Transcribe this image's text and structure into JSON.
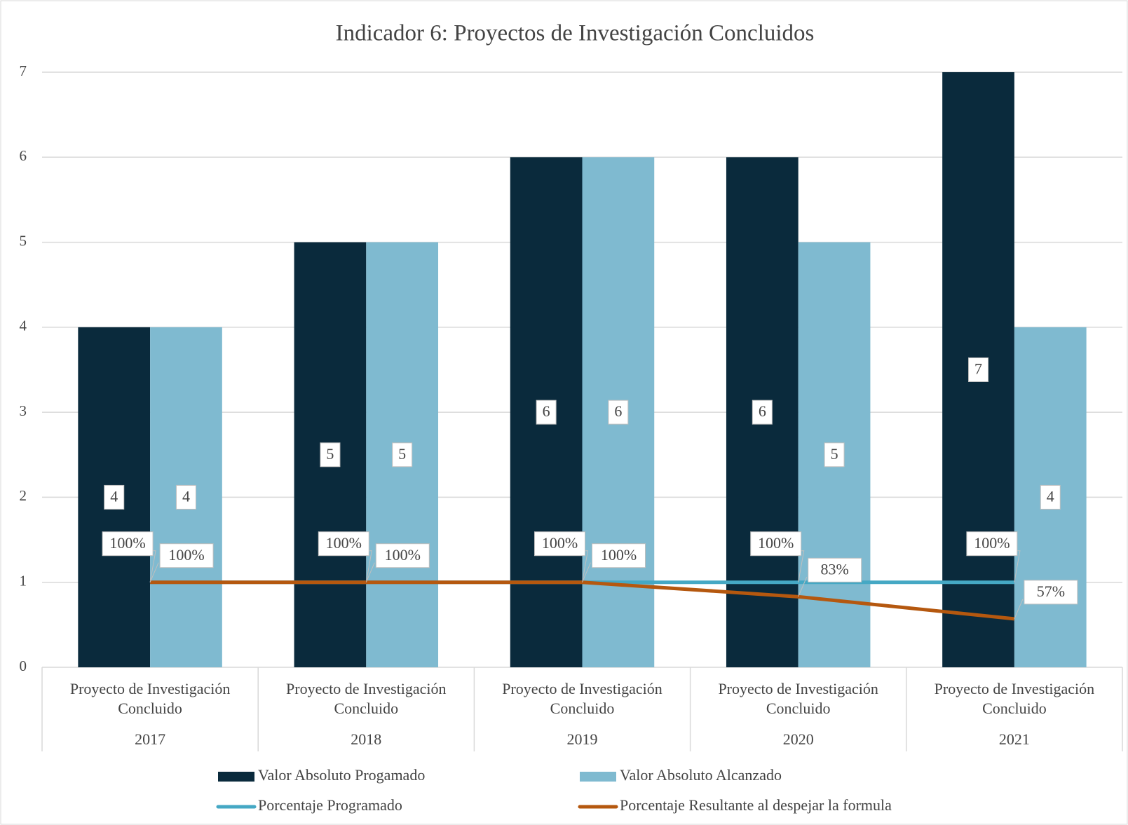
{
  "chart_data": {
    "type": "bar",
    "title": "Indicador 6:  Proyectos de Investigación Concluidos",
    "categories": [
      "2017",
      "2018",
      "2019",
      "2020",
      "2021"
    ],
    "category_sublabels": [
      "Proyecto de Investigación Concluido",
      "Proyecto de Investigación Concluido",
      "Proyecto de Investigación Concluido",
      "Proyecto de Investigación Concluido",
      "Proyecto de Investigación Concluido"
    ],
    "series": [
      {
        "name": "Valor Absoluto Progamado",
        "type": "bar",
        "color": "#0a2a3c",
        "values": [
          4,
          5,
          6,
          6,
          7
        ]
      },
      {
        "name": "Valor Absoluto Alcanzado",
        "type": "bar",
        "color": "#7fbad0",
        "values": [
          4,
          5,
          6,
          5,
          4
        ]
      },
      {
        "name": "Porcentaje Programado",
        "type": "line",
        "color": "#45a8c4",
        "values": [
          1,
          1,
          1,
          1,
          1
        ],
        "value_labels": [
          "100%",
          "100%",
          "100%",
          "100%",
          "100%"
        ]
      },
      {
        "name": "Porcentaje Resultante al despejar la formula",
        "type": "line",
        "color": "#b5580f",
        "values": [
          1,
          1,
          1,
          0.83,
          0.57
        ],
        "value_labels": [
          "100%",
          "100%",
          "100%",
          "83%",
          "57%"
        ]
      }
    ],
    "ylim": [
      0,
      7
    ],
    "yticks": [
      0,
      1,
      2,
      3,
      4,
      5,
      6,
      7
    ],
    "grid": true,
    "legend": "bottom"
  }
}
